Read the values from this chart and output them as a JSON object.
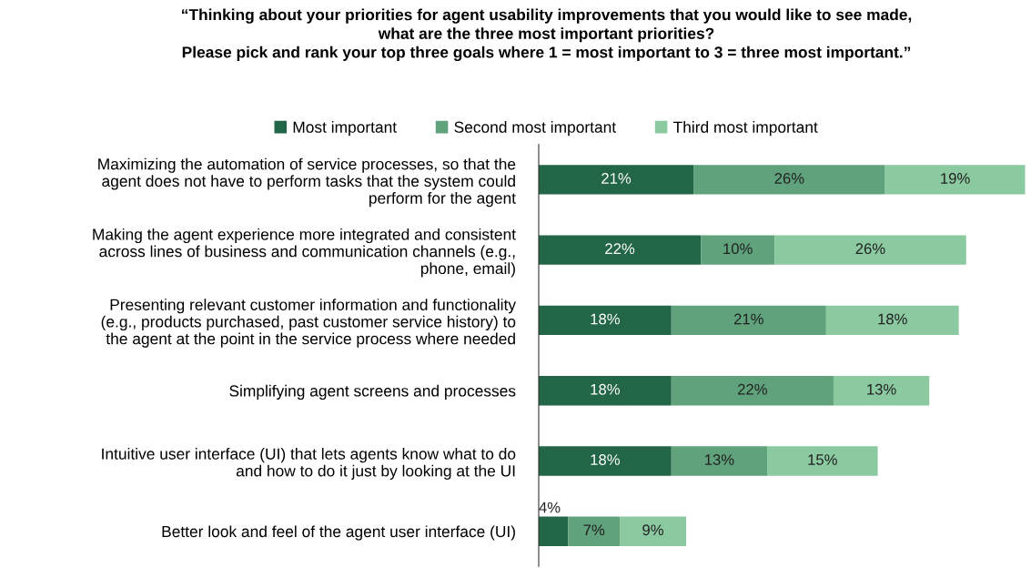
{
  "chart_data": {
    "type": "bar",
    "orientation": "horizontal",
    "stacked": true,
    "title": "“Thinking about your priorities for agent usability improvements that you would like to see made,\nwhat are the three most important priorities?\nPlease pick and rank your top three goals where 1 = most important to 3 = three most important.”",
    "categories": [
      "Maximizing the automation of service processes, so that the\nagent does not have to perform tasks that the system could\nperform for the agent",
      "Making the agent experience more integrated and consistent\nacross lines of business and communication channels (e.g.,\nphone, email)",
      "Presenting relevant customer information and functionality\n(e.g., products purchased, past customer service history) to\nthe agent at the point in the service process where needed",
      "Simplifying agent screens and processes",
      "Intuitive user interface (UI) that lets agents know what to do\nand how to do it just by looking at the UI",
      "Better look and feel of the agent user interface (UI)"
    ],
    "series": [
      {
        "name": "Most important",
        "color": "#236647",
        "values": [
          21,
          22,
          18,
          18,
          18,
          4
        ],
        "value_labels": [
          "21%",
          "22%",
          "18%",
          "18%",
          "18%",
          "4%"
        ]
      },
      {
        "name": "Second most important",
        "color": "#5fa27b",
        "values": [
          26,
          10,
          21,
          22,
          13,
          7
        ],
        "value_labels": [
          "26%",
          "10%",
          "21%",
          "22%",
          "13%",
          "7%"
        ]
      },
      {
        "name": "Third most important",
        "color": "#8bc9a1",
        "values": [
          19,
          26,
          18,
          13,
          15,
          9
        ],
        "value_labels": [
          "19%",
          "26%",
          "18%",
          "13%",
          "15%",
          "9%"
        ]
      }
    ],
    "tick_labels": "y",
    "legend": "top",
    "grid": false
  }
}
